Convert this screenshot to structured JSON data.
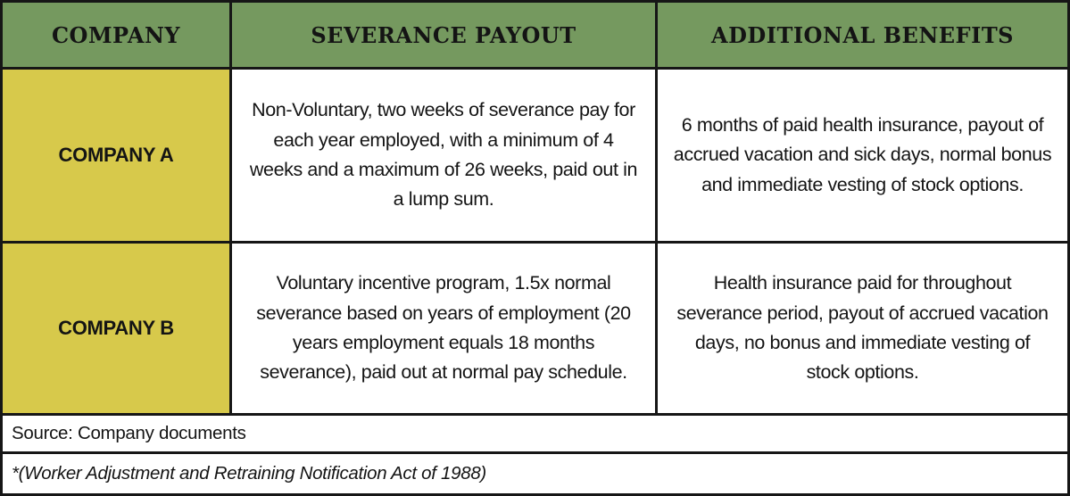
{
  "table": {
    "columns": [
      "COMPANY",
      "SEVERANCE PAYOUT",
      "ADDITIONAL BENEFITS"
    ],
    "rows": [
      {
        "company": "COMPANY A",
        "severance": "Non-Voluntary, two weeks of severance pay for each year employed, with a minimum of 4 weeks and a maximum of 26 weeks, paid out in a lump sum.",
        "benefits": "6 months of paid health insurance, payout of accrued vacation and sick days, normal bonus and immediate vesting of stock options."
      },
      {
        "company": "COMPANY B",
        "severance": "Voluntary incentive program, 1.5x normal severance based on years of employment (20 years employment equals 18 months severance), paid out at normal pay schedule.",
        "benefits": "Health insurance paid for throughout severance period, payout of accrued vacation days, no bonus and immediate vesting of stock options."
      }
    ],
    "source": "Source: Company documents",
    "footnote": "*(Worker Adjustment and Retraining Notification Act of 1988)"
  },
  "colors": {
    "header_bg": "#75995F",
    "company_bg": "#D7C94B",
    "cell_bg": "#FFFFFF",
    "border": "#161616",
    "text": "#141414"
  },
  "chart_data": {
    "type": "table",
    "columns": [
      "COMPANY",
      "SEVERANCE PAYOUT",
      "ADDITIONAL BENEFITS"
    ],
    "rows": [
      [
        "COMPANY A",
        "Non-Voluntary, two weeks of severance pay for each year employed, with a minimum of 4 weeks and a maximum of 26 weeks, paid out in a lump sum.",
        "6 months of paid health insurance, payout of accrued vacation and sick days, normal bonus and immediate vesting of stock options."
      ],
      [
        "COMPANY B",
        "Voluntary incentive program, 1.5x normal severance based on years of employment (20 years employment equals 18 months severance), paid out at normal pay schedule.",
        "Health insurance paid for throughout severance period, payout of accrued vacation days, no bonus and immediate vesting of stock options."
      ]
    ],
    "source": "Source: Company documents",
    "footnote": "*(Worker Adjustment and Retraining Notification Act of 1988)",
    "layout_hints": {
      "header_row_color": "#75995F",
      "company_column_color": "#D7C94B",
      "grid": "on"
    }
  }
}
